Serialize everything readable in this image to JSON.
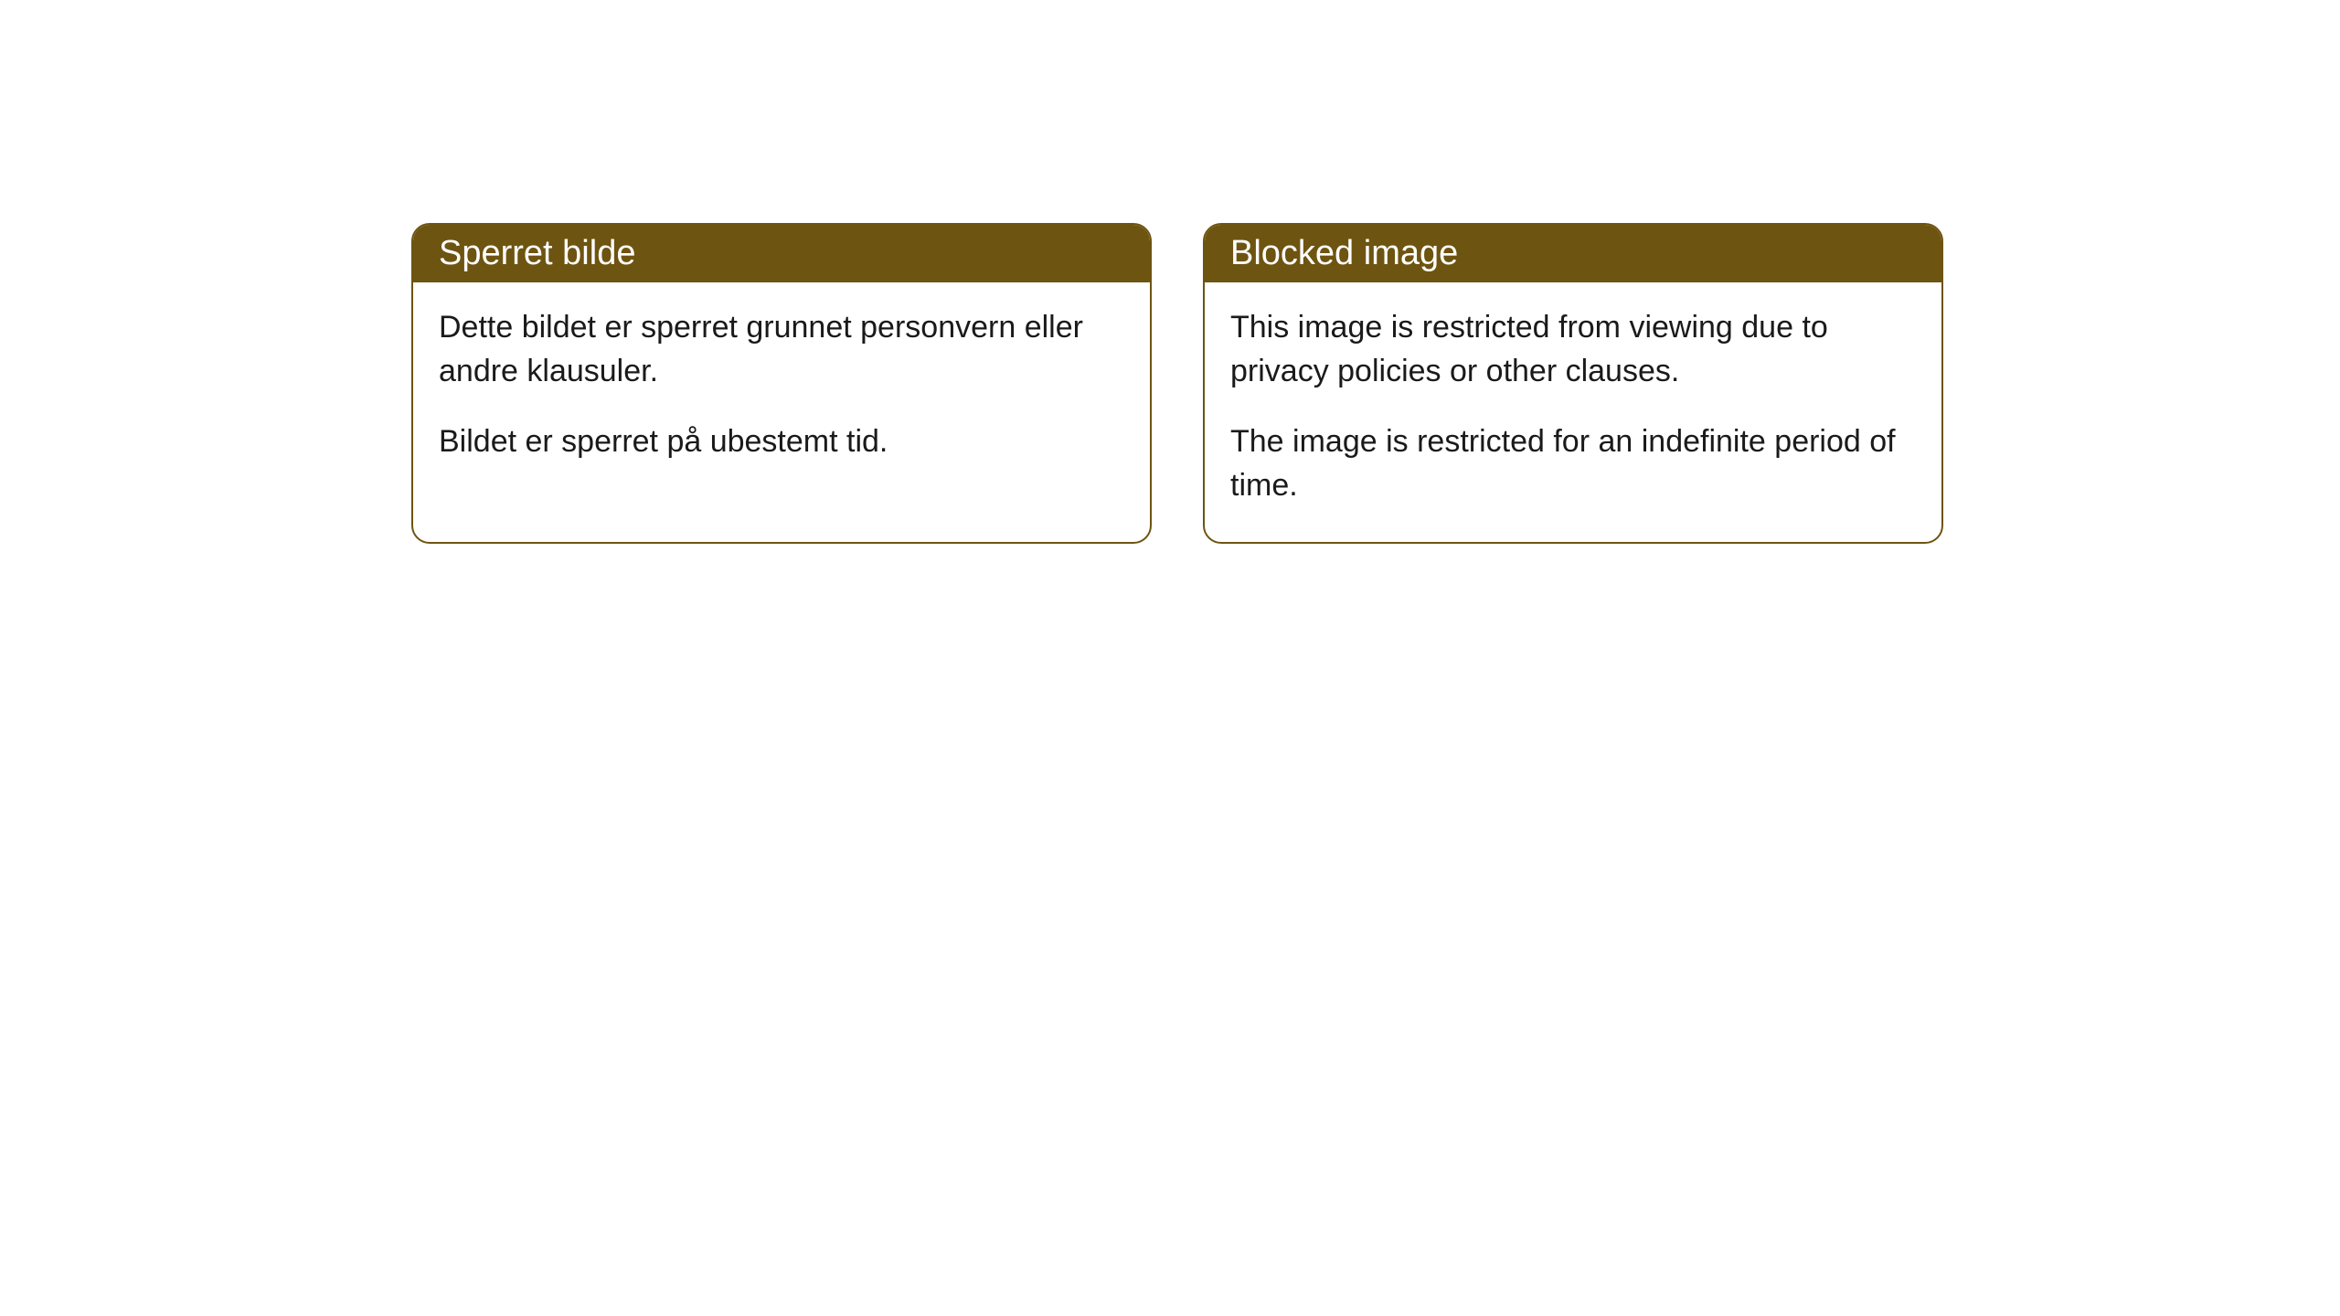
{
  "cards": [
    {
      "title": "Sperret bilde",
      "paragraph1": "Dette bildet er sperret grunnet personvern eller andre klausuler.",
      "paragraph2": "Bildet er sperret på ubestemt tid."
    },
    {
      "title": "Blocked image",
      "paragraph1": "This image is restricted from viewing due to privacy policies or other clauses.",
      "paragraph2": "The image is restricted for an indefinite period of time."
    }
  ],
  "styling": {
    "header_bg_color": "#6e5411",
    "header_text_color": "#ffffff",
    "border_color": "#6e5411",
    "body_bg_color": "#ffffff",
    "body_text_color": "#1a1a1a",
    "border_radius": 20,
    "header_font_size": 38,
    "body_font_size": 34
  }
}
